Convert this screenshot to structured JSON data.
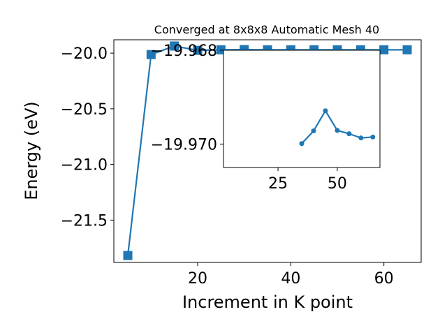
{
  "chart_data": [
    {
      "type": "line",
      "title": "Converged at 8x8x8 Automatic Mesh 40",
      "xlabel": "Increment in K point",
      "ylabel": "Energy (eV)",
      "xlim": [
        2,
        68
      ],
      "ylim": [
        -21.88,
        -19.88
      ],
      "xticks": [
        20,
        40,
        60
      ],
      "yticks": [
        -21.5,
        -21.0,
        -20.5,
        -20.0
      ],
      "yticklabels": [
        "−21.5",
        "−21.0",
        "−20.5",
        "−20.0"
      ],
      "marker": "square",
      "color": "#1f77b4",
      "series": [
        {
          "x": [
            5,
            10,
            15,
            20,
            25,
            30,
            35,
            40,
            45,
            50,
            55,
            60,
            65
          ],
          "y": [
            -21.818,
            -20.013,
            -19.936,
            -19.975,
            -19.97,
            -19.968,
            -19.97,
            -19.97,
            -19.97,
            -19.97,
            -19.97,
            -19.97,
            -19.97
          ]
        }
      ]
    },
    {
      "type": "line",
      "subtype": "inset",
      "xlim": [
        2,
        68
      ],
      "ylim": [
        -19.9705,
        -19.968
      ],
      "xticks": [
        25,
        50
      ],
      "yticks": [
        -19.97,
        -19.968
      ],
      "yticklabels": [
        "−19.970",
        "−19.968"
      ],
      "marker": "circle",
      "color": "#1f77b4",
      "series": [
        {
          "x": [
            35,
            40,
            45,
            50,
            55,
            60,
            65
          ],
          "y": [
            -19.96999,
            -19.96972,
            -19.96929,
            -19.96971,
            -19.96978,
            -19.96987,
            -19.96985
          ]
        }
      ]
    }
  ]
}
